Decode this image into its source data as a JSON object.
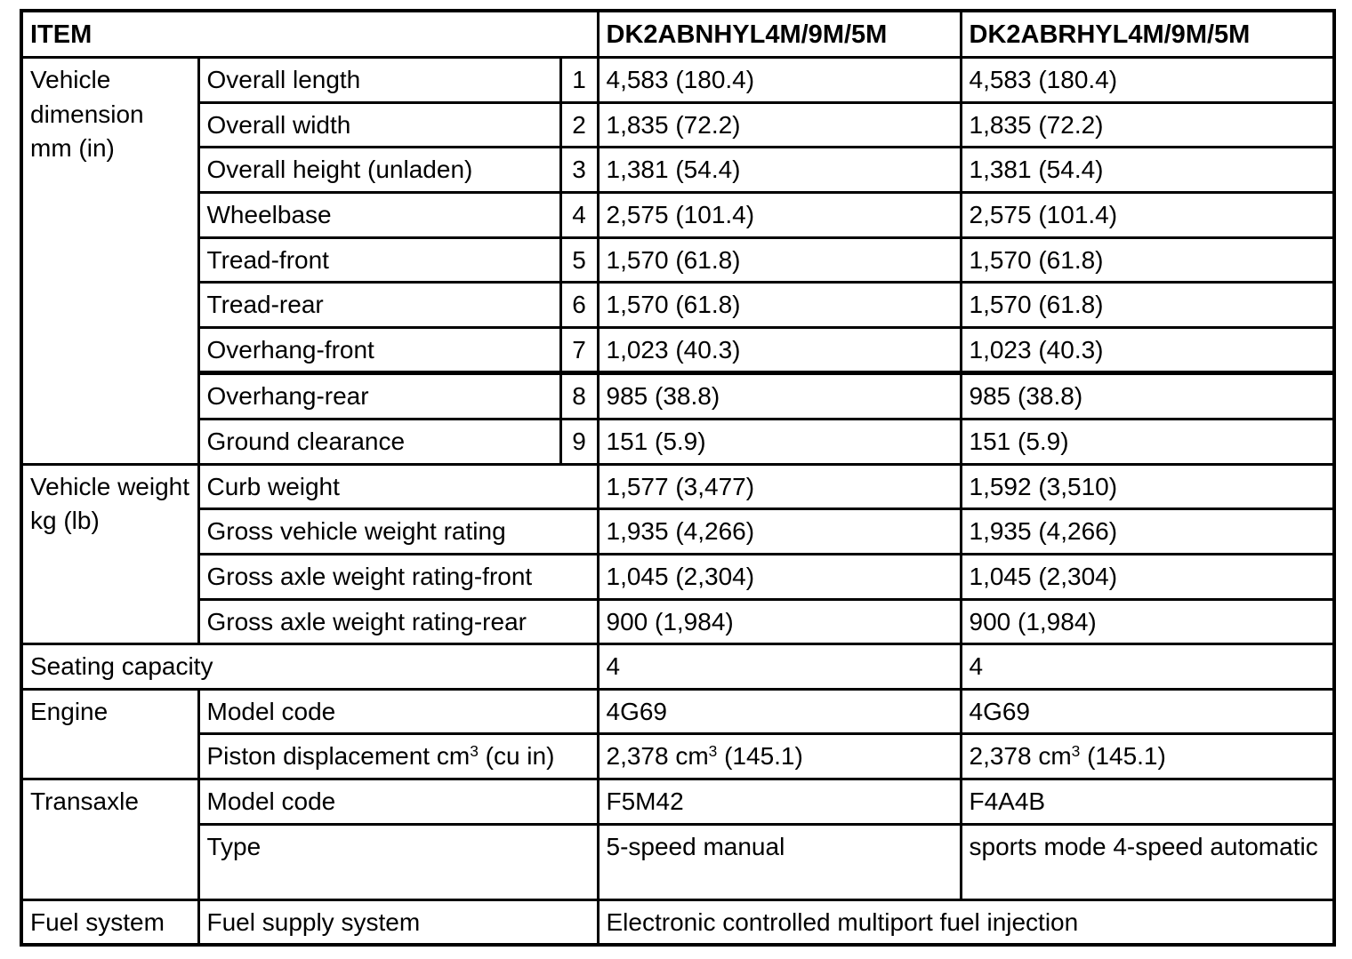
{
  "header": {
    "item": "ITEM",
    "model_a": "DK2ABNHYL4M/9M/5M",
    "model_b": "DK2ABRHYL4M/9M/5M"
  },
  "dimension": {
    "group": "Vehicle dimension mm (in)",
    "rows": [
      {
        "label": "Overall length",
        "num": "1",
        "a": "4,583 (180.4)",
        "b": "4,583 (180.4)"
      },
      {
        "label": "Overall width",
        "num": "2",
        "a": "1,835 (72.2)",
        "b": "1,835 (72.2)"
      },
      {
        "label": "Overall height (unladen)",
        "num": "3",
        "a": "1,381 (54.4)",
        "b": "1,381 (54.4)"
      },
      {
        "label": "Wheelbase",
        "num": "4",
        "a": "2,575 (101.4)",
        "b": "2,575 (101.4)"
      },
      {
        "label": "Tread-front",
        "num": "5",
        "a": "1,570 (61.8)",
        "b": "1,570 (61.8)"
      },
      {
        "label": "Tread-rear",
        "num": "6",
        "a": "1,570 (61.8)",
        "b": "1,570 (61.8)"
      },
      {
        "label": "Overhang-front",
        "num": "7",
        "a": "1,023 (40.3)",
        "b": "1,023 (40.3)"
      },
      {
        "label": "Overhang-rear",
        "num": "8",
        "a": "985 (38.8)",
        "b": "985 (38.8)"
      },
      {
        "label": "Ground clearance",
        "num": "9",
        "a": "151 (5.9)",
        "b": "151 (5.9)"
      }
    ]
  },
  "weight": {
    "group": "Vehicle weight kg (lb)",
    "rows": [
      {
        "label": "Curb weight",
        "a": "1,577 (3,477)",
        "b": "1,592 (3,510)"
      },
      {
        "label": "Gross vehicle weight rating",
        "a": "1,935 (4,266)",
        "b": "1,935 (4,266)"
      },
      {
        "label": "Gross axle weight rating-front",
        "a": "1,045 (2,304)",
        "b": "1,045 (2,304)"
      },
      {
        "label": "Gross axle weight rating-rear",
        "a": "900 (1,984)",
        "b": "900 (1,984)"
      }
    ]
  },
  "seating": {
    "label": "Seating capacity",
    "a": "4",
    "b": "4"
  },
  "engine": {
    "group": "Engine",
    "model": {
      "label": "Model code",
      "a": "4G69",
      "b": "4G69"
    },
    "displacement": {
      "label_pre": "Piston displacement cm",
      "label_sup": "3",
      "label_post": " (cu in)",
      "a_pre": "2,378 cm",
      "a_sup": "3",
      "a_post": " (145.1)",
      "b_pre": "2,378 cm",
      "b_sup": "3",
      "b_post": " (145.1)"
    }
  },
  "transaxle": {
    "group": "Transaxle",
    "model": {
      "label": "Model code",
      "a": "F5M42",
      "b": "F4A4B"
    },
    "type": {
      "label": "Type",
      "a": "5-speed manual",
      "b": "sports mode 4-speed automatic"
    }
  },
  "fuel": {
    "group": "Fuel system",
    "label": "Fuel supply system",
    "value": "Electronic controlled multiport fuel injection"
  },
  "colors": {
    "text": "#000000",
    "border": "#000000",
    "background": "#ffffff"
  }
}
